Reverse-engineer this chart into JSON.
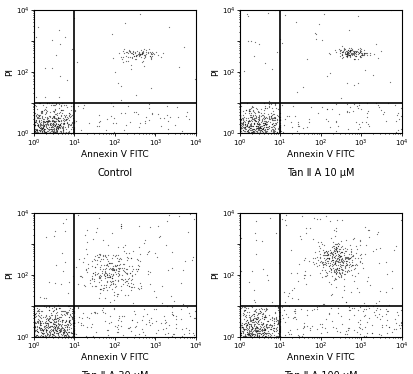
{
  "panels": [
    {
      "label": "Control",
      "main_cluster": {
        "x_log_mean": 0.3,
        "x_log_std": 0.35,
        "y_log_mean": 0.2,
        "y_log_std": 0.25,
        "n": 500
      },
      "streak_cluster": {
        "x_log_mean": 2.6,
        "x_log_std": 0.25,
        "y_log_mean": 2.55,
        "y_log_std": 0.08,
        "n": 90
      },
      "scatter_ll": 120,
      "scatter_lr": 60,
      "scatter_ul": 15,
      "scatter_ur": 20
    },
    {
      "label": "Tan Ⅱ A 10 μM",
      "main_cluster": {
        "x_log_mean": 0.35,
        "x_log_std": 0.38,
        "y_log_mean": 0.2,
        "y_log_std": 0.25,
        "n": 480
      },
      "streak_cluster": {
        "x_log_mean": 2.75,
        "x_log_std": 0.2,
        "y_log_mean": 2.6,
        "y_log_std": 0.08,
        "n": 130
      },
      "scatter_ll": 110,
      "scatter_lr": 80,
      "scatter_ul": 15,
      "scatter_ur": 30
    },
    {
      "label": "Tan Ⅱ A 30 μM",
      "main_cluster": {
        "x_log_mean": 0.4,
        "x_log_std": 0.42,
        "y_log_mean": 0.2,
        "y_log_std": 0.28,
        "n": 420
      },
      "streak_cluster": {
        "x_log_mean": 1.9,
        "x_log_std": 0.35,
        "y_log_mean": 2.1,
        "y_log_std": 0.35,
        "n": 250
      },
      "scatter_ll": 180,
      "scatter_lr": 120,
      "scatter_ul": 20,
      "scatter_ur": 80
    },
    {
      "label": "Tan Ⅱ A 100 μM",
      "main_cluster": {
        "x_log_mean": 0.35,
        "x_log_std": 0.38,
        "y_log_mean": 0.2,
        "y_log_std": 0.25,
        "n": 380
      },
      "streak_cluster": {
        "x_log_mean": 2.4,
        "x_log_std": 0.28,
        "y_log_mean": 2.45,
        "y_log_std": 0.28,
        "n": 320
      },
      "scatter_ll": 160,
      "scatter_lr": 140,
      "scatter_ul": 20,
      "scatter_ur": 100
    }
  ],
  "xlabel": "Annexin V FITC",
  "ylabel": "PI",
  "xlim_log": [
    0,
    4
  ],
  "ylim_log": [
    0,
    4
  ],
  "divider_x_log": 1.0,
  "divider_y_log": 1.0,
  "dot_color": "#111111",
  "dot_size": 0.8,
  "dot_alpha": 0.6,
  "background_color": "#ffffff",
  "label_fontsize": 7,
  "axis_label_fontsize": 6.5,
  "tick_fontsize": 5
}
